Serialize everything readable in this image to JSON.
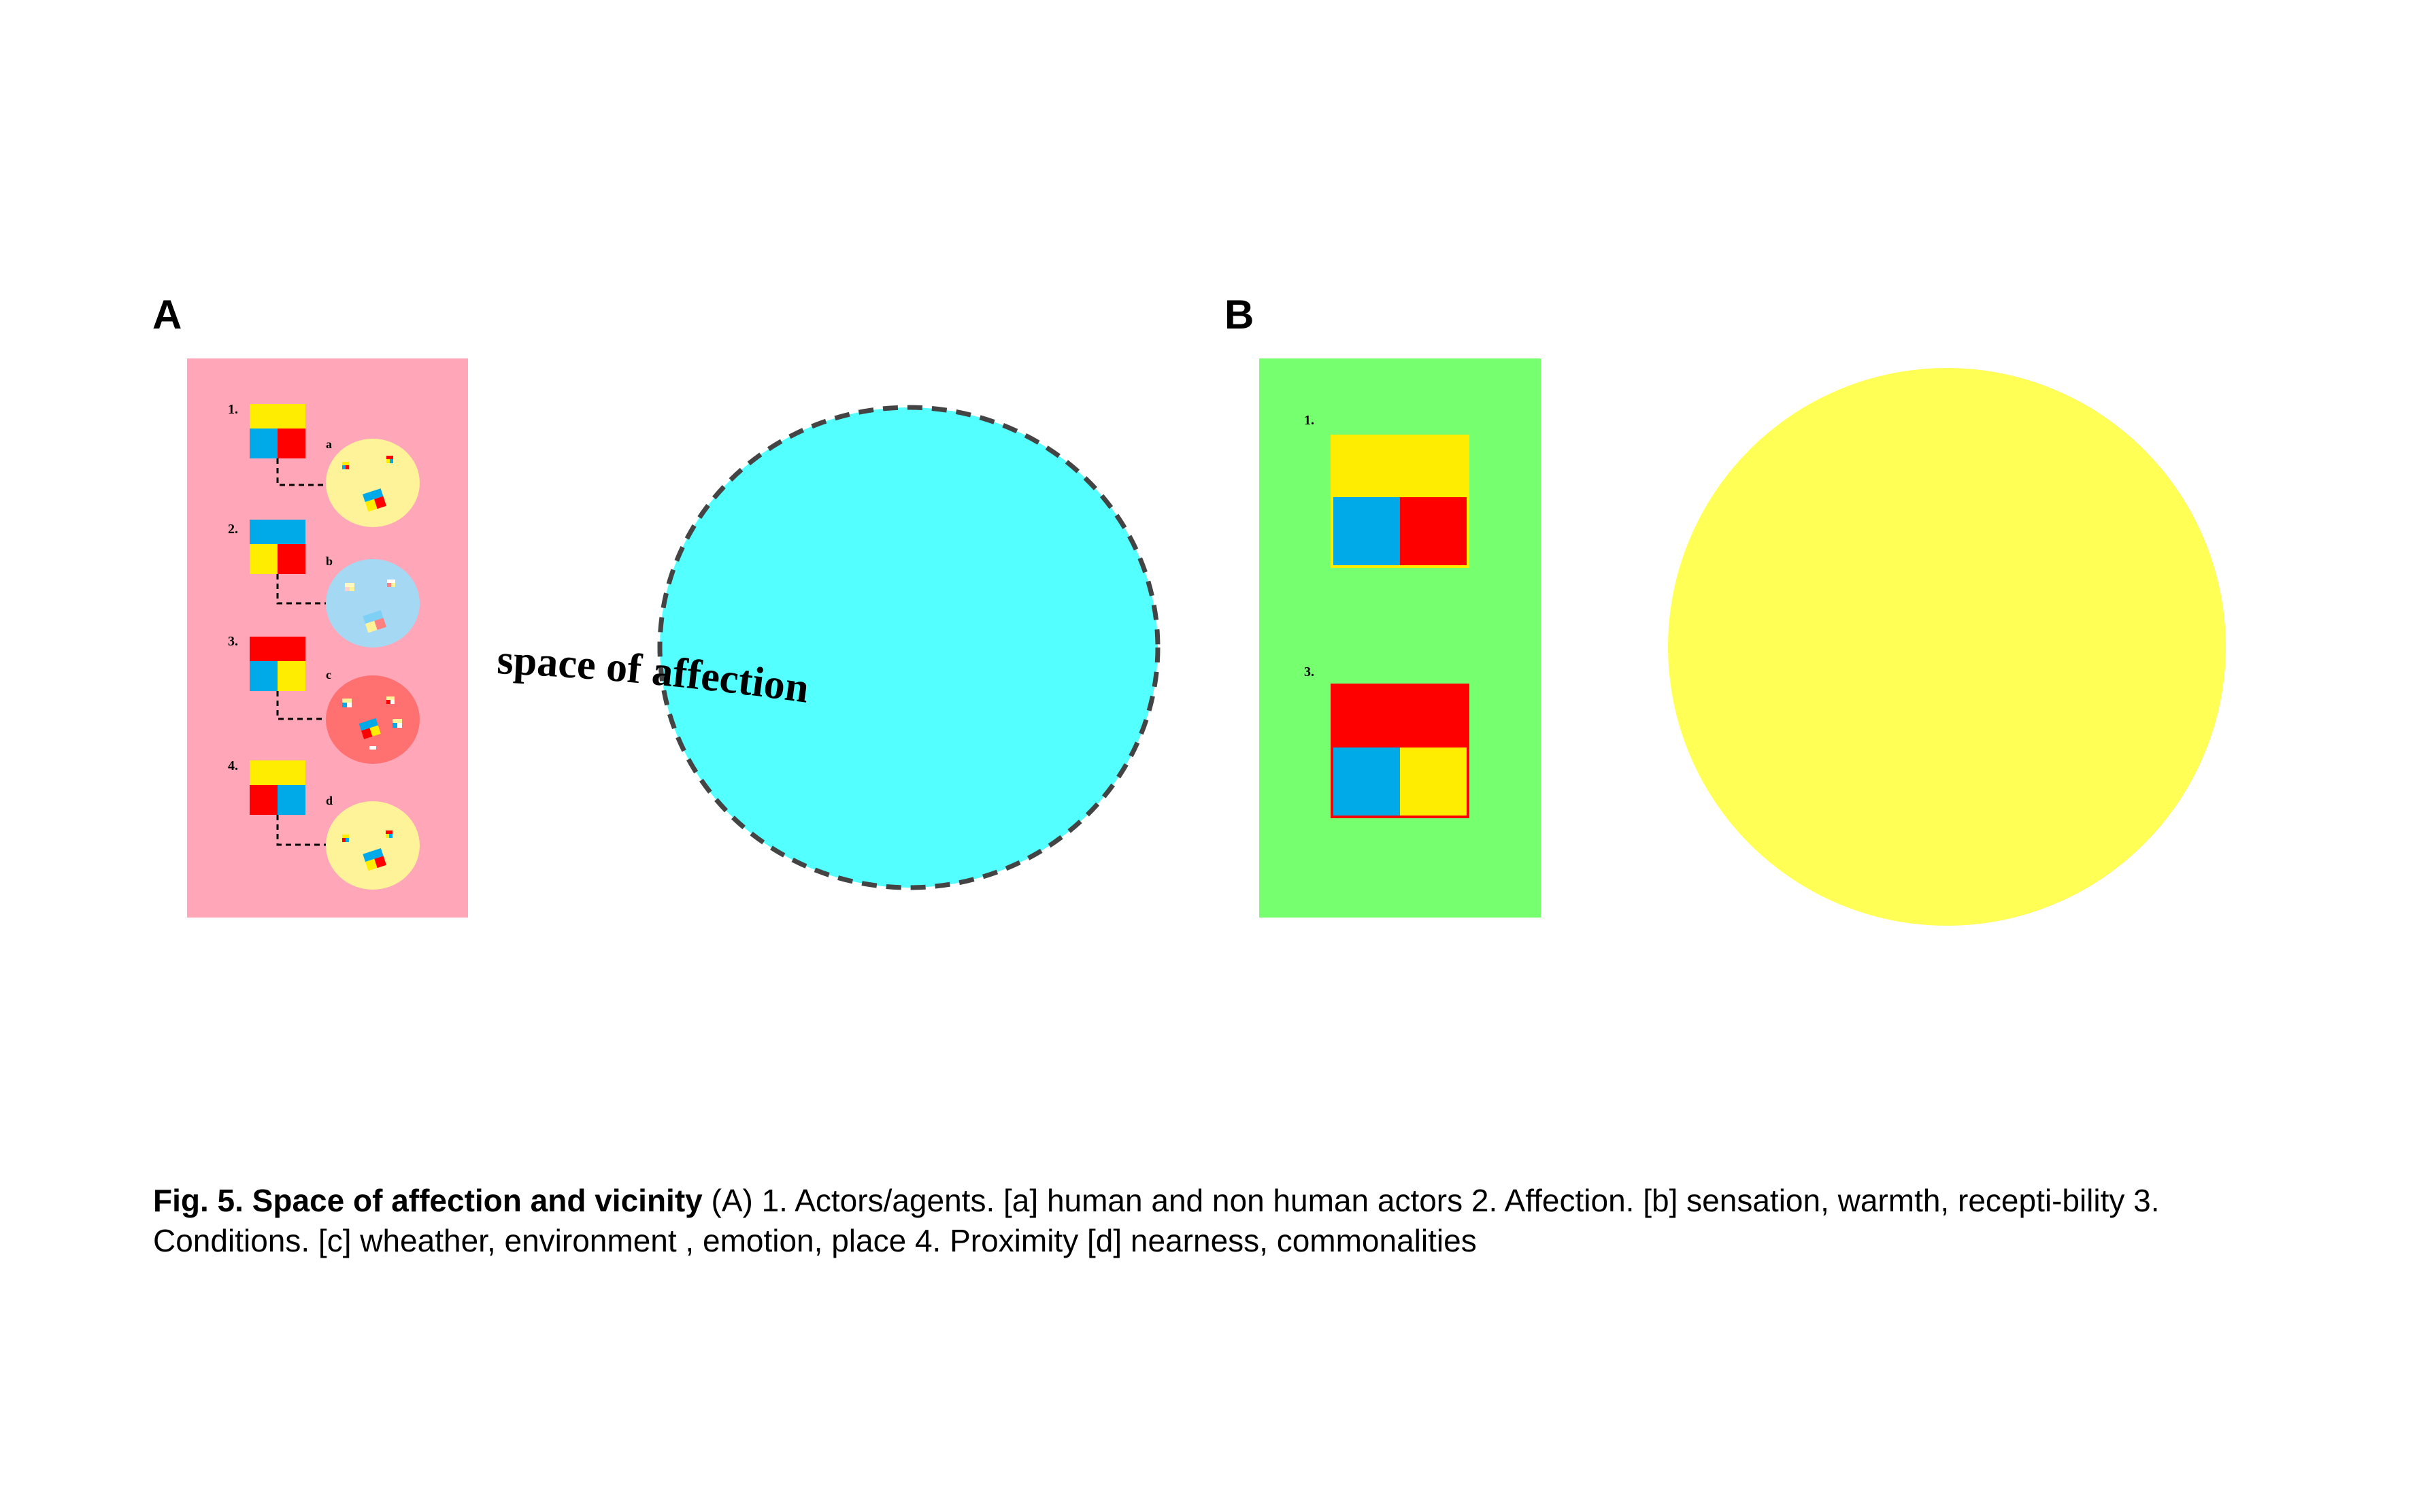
{
  "panels": {
    "a_label": "A",
    "b_label": "B"
  },
  "panel_a": {
    "items": [
      {
        "number": "1.",
        "letter": "a"
      },
      {
        "number": "2.",
        "letter": "b"
      },
      {
        "number": "3.",
        "letter": "c"
      },
      {
        "number": "4.",
        "letter": "d"
      }
    ],
    "curved_label": "space of affection"
  },
  "panel_b": {
    "items": [
      {
        "number": "1."
      },
      {
        "number": "3."
      }
    ]
  },
  "caption": {
    "title": "Fig. 5. Space of affection and vicinity",
    "body": " (A) 1. Actors/agents. [a] human and non human actors 2. Affection. [b] sensation, warmth, recepti-bility 3. Conditions. [c] wheather, environment , emotion, place  4. Proximity [d] nearness, commonalities"
  },
  "colors": {
    "panel_a_bg": "#ffa6b8",
    "panel_b_bg": "#76ff6e",
    "cyan_circle": "#54ffff",
    "yellow_circle": "#ffff55",
    "yellow": "#ffed00",
    "blue": "#00a9e8",
    "red": "#ff0000"
  }
}
